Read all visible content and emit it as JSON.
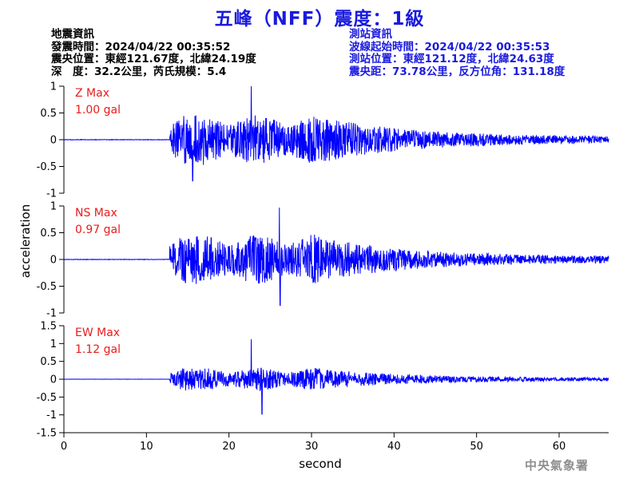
{
  "title": "五峰（NFF）震度：1級",
  "quake_info": {
    "heading": "地震資訊",
    "origin_time": "發震時間：2024/04/22 00:35:52",
    "epicenter": "震央位置：東經121.67度，北緯24.19度",
    "depth_magnitude": "深　度：32.2公里，芮氏規模：5.4"
  },
  "station_info": {
    "heading": "測站資訊",
    "wave_start_time": "波線起始時間：2024/04/22 00:35:53",
    "station_location": "測站位置：東經121.12度，北緯24.63度",
    "distance_azimuth": "震央距：73.78公里，反方位角：131.18度"
  },
  "watermark": "中央氣象署",
  "colors": {
    "trace": "#0000ff",
    "max_label": "#e81c1c",
    "title": "#1a1adf"
  },
  "chart_data": {
    "type": "line",
    "xlabel": "second",
    "ylabel": "acceleration",
    "xlim": [
      0,
      66
    ],
    "xticks": [
      0,
      10,
      20,
      30,
      40,
      50,
      60
    ],
    "x_tick_labels": [
      "0",
      "10",
      "20",
      "30",
      "40",
      "50",
      "60"
    ],
    "grid": false,
    "panels": [
      {
        "component": "Z",
        "max_label": "Z Max",
        "max_value_label": "1.00 gal",
        "max_value": 1.0,
        "ylim": [
          -1,
          1
        ],
        "yticks": [
          1,
          0.5,
          0,
          -0.5,
          -1
        ],
        "y_tick_labels": [
          "1",
          "0.5",
          "0",
          "-0.5",
          "-1"
        ],
        "onset_s": 12.8,
        "peak_time_s": 22.7,
        "min_value": -0.77,
        "min_time_s": 15.6
      },
      {
        "component": "NS",
        "max_label": "NS Max",
        "max_value_label": "0.97 gal",
        "max_value": 0.97,
        "ylim": [
          -1,
          1
        ],
        "yticks": [
          1,
          0.5,
          0,
          -0.5,
          -1
        ],
        "y_tick_labels": [
          "1",
          "0.5",
          "0",
          "-0.5",
          "-1"
        ],
        "onset_s": 12.8,
        "peak_time_s": 26.1,
        "min_value": -0.86,
        "min_time_s": 26.2
      },
      {
        "component": "EW",
        "max_label": "EW Max",
        "max_value_label": "1.12 gal",
        "max_value": 1.12,
        "ylim": [
          -1.5,
          1.5
        ],
        "yticks": [
          1.5,
          1,
          0.5,
          0,
          -0.5,
          -1,
          -1.5
        ],
        "y_tick_labels": [
          "1.5",
          "1",
          "0.5",
          "0",
          "-0.5",
          "-1",
          "-1.5"
        ],
        "onset_s": 12.8,
        "peak_time_s": 22.7,
        "min_value": -0.98,
        "min_time_s": 24.0
      }
    ]
  }
}
